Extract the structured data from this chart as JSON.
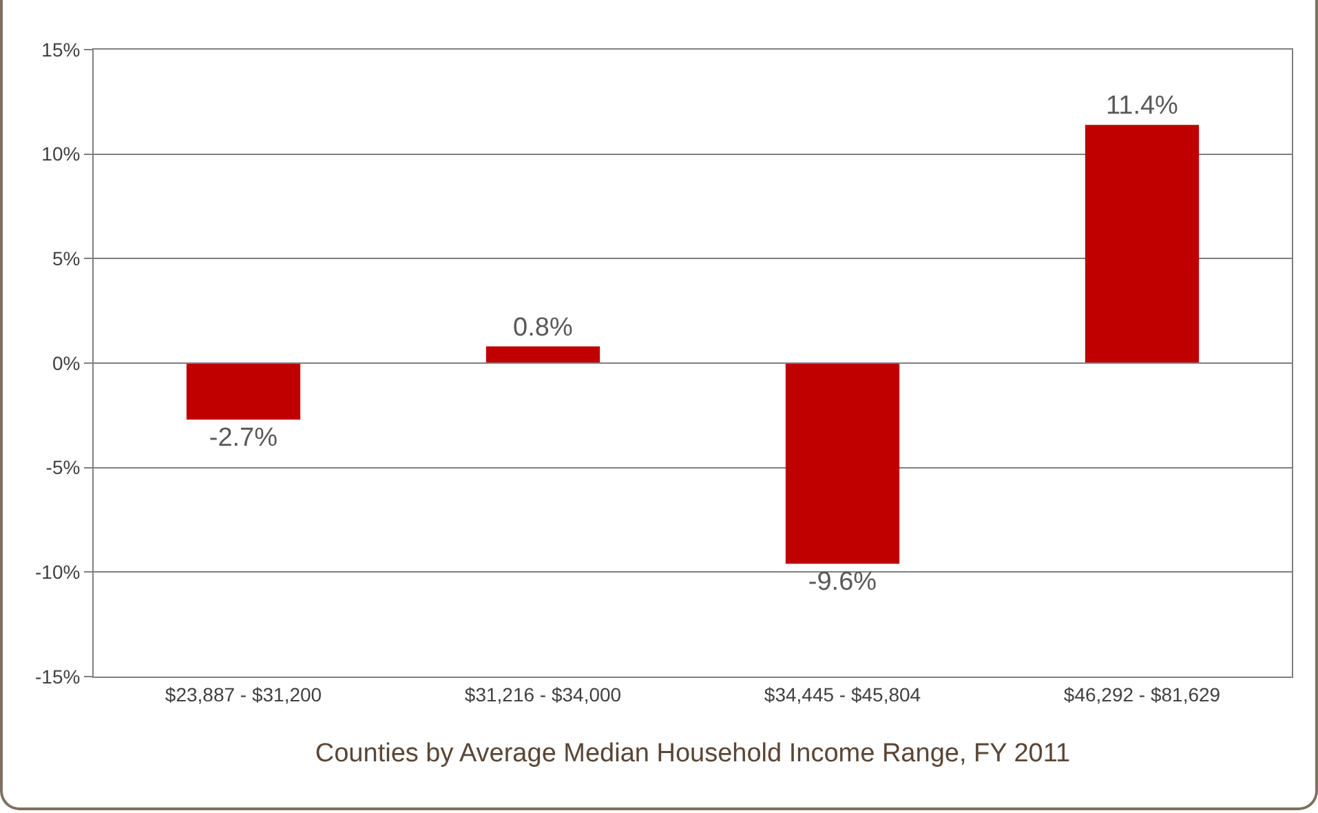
{
  "chart_data": {
    "type": "bar",
    "xlabel": "Counties by Average Median Household Income Range, FY 2011",
    "categories": [
      "$23,887 - $31,200",
      "$31,216 - $34,000",
      "$34,445 - $45,804",
      "$46,292 - $81,629"
    ],
    "values": [
      -2.7,
      0.8,
      -9.6,
      11.4
    ],
    "value_labels": [
      "-2.7%",
      "0.8%",
      "-9.6%",
      "11.4%"
    ],
    "color": "#c00000",
    "ylim": [
      -15,
      15
    ],
    "yticks": [
      {
        "value": -15,
        "label": "-15%"
      },
      {
        "value": -10,
        "label": "-10%"
      },
      {
        "value": -5,
        "label": "-5%"
      },
      {
        "value": 0,
        "label": "0%"
      },
      {
        "value": 5,
        "label": "5%"
      },
      {
        "value": 10,
        "label": "10%"
      },
      {
        "value": 15,
        "label": "15%"
      }
    ],
    "grid": "y"
  }
}
